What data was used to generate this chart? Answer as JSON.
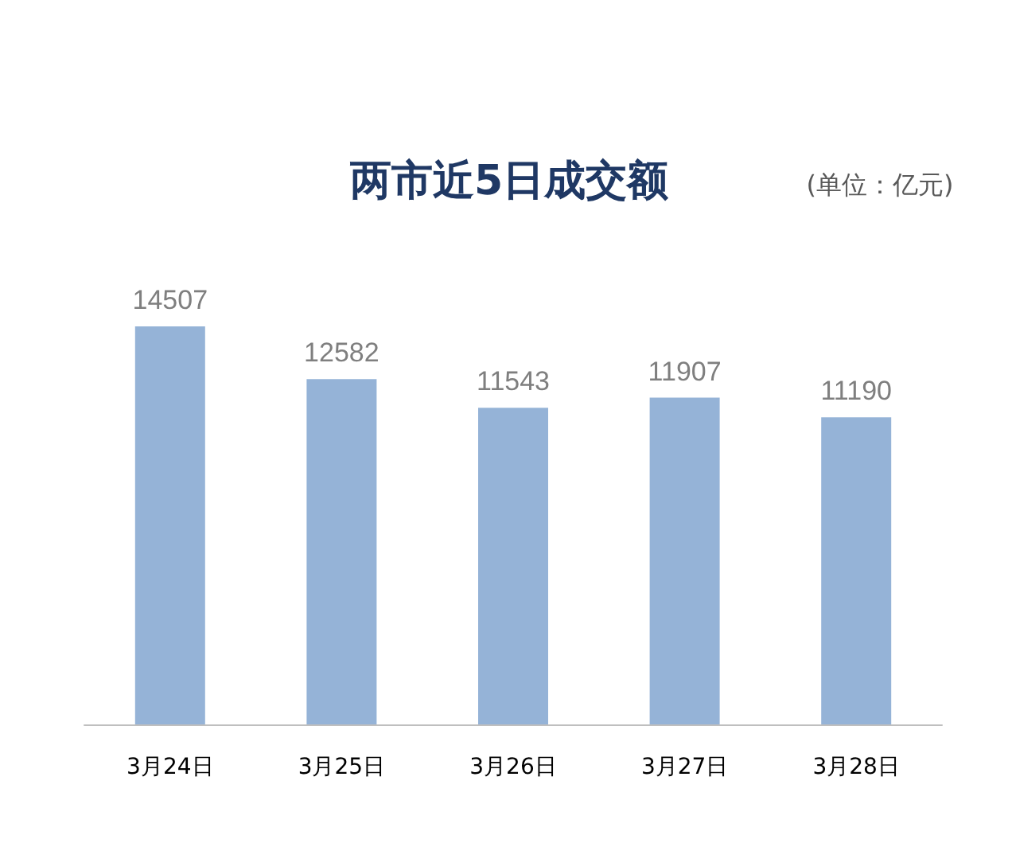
{
  "chart_data": {
    "type": "bar",
    "title": "两市近5日成交额",
    "subtitle": "(单位：亿元)",
    "categories": [
      "3月24日",
      "3月25日",
      "3月26日",
      "3月27日",
      "3月28日"
    ],
    "values": [
      14507,
      12582,
      11543,
      11907,
      11190
    ],
    "color": "#95b3d7",
    "data_labels": true
  }
}
